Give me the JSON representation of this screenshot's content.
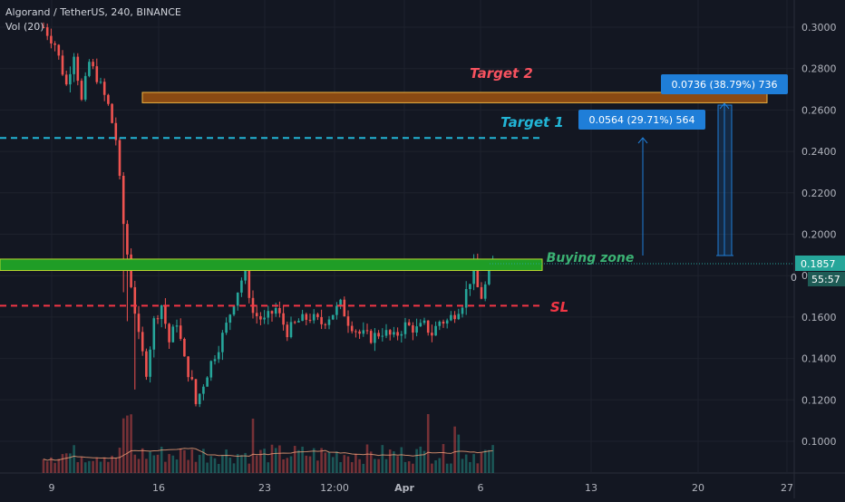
{
  "header": {
    "title": "Algorand / TetherUS, 240, BINANCE",
    "volume": "Vol (20)"
  },
  "colors": {
    "background": "#131722",
    "up": "#26a69a",
    "down": "#ef5350",
    "grid": "#1e222d",
    "axis_text": "#b2b5be",
    "target2": "#f7525f",
    "target1": "#22b5d6",
    "buying_zone": "#3bb273",
    "sl": "#f23645",
    "label_box": "#1f7ed8",
    "price_tag": "#26a69a"
  },
  "chart_data": {
    "type": "candlestick",
    "symbol": "Algorand / TetherUS",
    "timeframe": "240",
    "exchange": "BINANCE",
    "ylim": [
      0.085,
      0.31
    ],
    "y_ticks": [
      0.3,
      0.28,
      0.26,
      0.24,
      0.22,
      0.2,
      0.18,
      0.16,
      0.14,
      0.12,
      0.1
    ],
    "y_tick_labels": [
      "0.3000",
      "0.2800",
      "0.2600",
      "0.2400",
      "0.2200",
      "0.2000",
      "0.1800",
      "0.1600",
      "0.1400",
      "0.1200",
      "0.1000"
    ],
    "x_tick_labels": [
      "9",
      "16",
      "23",
      "12:00",
      "Apr",
      "6",
      "13",
      "20",
      "27"
    ],
    "x_tick_bold": [
      false,
      false,
      false,
      false,
      true,
      false,
      false,
      false,
      false
    ],
    "current_price": "0.1857",
    "countdown": "55:57",
    "partial_tick": "0",
    "price_path": [
      [
        0,
        0.3
      ],
      [
        3,
        0.292
      ],
      [
        6,
        0.272
      ],
      [
        8,
        0.288
      ],
      [
        10,
        0.264
      ],
      [
        12,
        0.283
      ],
      [
        14,
        0.276
      ],
      [
        17,
        0.262
      ],
      [
        19,
        0.246
      ],
      [
        21,
        0.205
      ],
      [
        23,
        0.176
      ],
      [
        25,
        0.15
      ],
      [
        27,
        0.134
      ],
      [
        29,
        0.158
      ],
      [
        31,
        0.166
      ],
      [
        33,
        0.148
      ],
      [
        35,
        0.158
      ],
      [
        37,
        0.139
      ],
      [
        39,
        0.128
      ],
      [
        40,
        0.118
      ],
      [
        42,
        0.128
      ],
      [
        44,
        0.138
      ],
      [
        46,
        0.146
      ],
      [
        48,
        0.156
      ],
      [
        50,
        0.168
      ],
      [
        52,
        0.178
      ],
      [
        53,
        0.181
      ],
      [
        55,
        0.162
      ],
      [
        58,
        0.158
      ],
      [
        61,
        0.164
      ],
      [
        64,
        0.153
      ],
      [
        67,
        0.158
      ],
      [
        70,
        0.16
      ],
      [
        73,
        0.157
      ],
      [
        76,
        0.162
      ],
      [
        78,
        0.166
      ],
      [
        80,
        0.158
      ],
      [
        83,
        0.152
      ],
      [
        86,
        0.15
      ],
      [
        89,
        0.153
      ],
      [
        92,
        0.15
      ],
      [
        95,
        0.156
      ],
      [
        98,
        0.154
      ],
      [
        100,
        0.156
      ],
      [
        102,
        0.152
      ],
      [
        104,
        0.158
      ],
      [
        106,
        0.158
      ],
      [
        108,
        0.162
      ],
      [
        110,
        0.167
      ],
      [
        112,
        0.178
      ],
      [
        113,
        0.184
      ],
      [
        114,
        0.174
      ],
      [
        115,
        0.17
      ],
      [
        117,
        0.18
      ],
      [
        118,
        0.1857
      ]
    ],
    "annotations": {
      "target2": {
        "label": "Target 2",
        "zone": [
          0.2635,
          0.2685
        ],
        "measure": "0.0736 (38.79%) 736"
      },
      "target1": {
        "label": "Target 1",
        "level": 0.2465,
        "measure": "0.0564 (29.71%) 564"
      },
      "buying_zone": {
        "label": "Buying zone",
        "zone": [
          0.1825,
          0.188
        ]
      },
      "sl": {
        "label": "SL",
        "level": 0.1655
      }
    }
  }
}
